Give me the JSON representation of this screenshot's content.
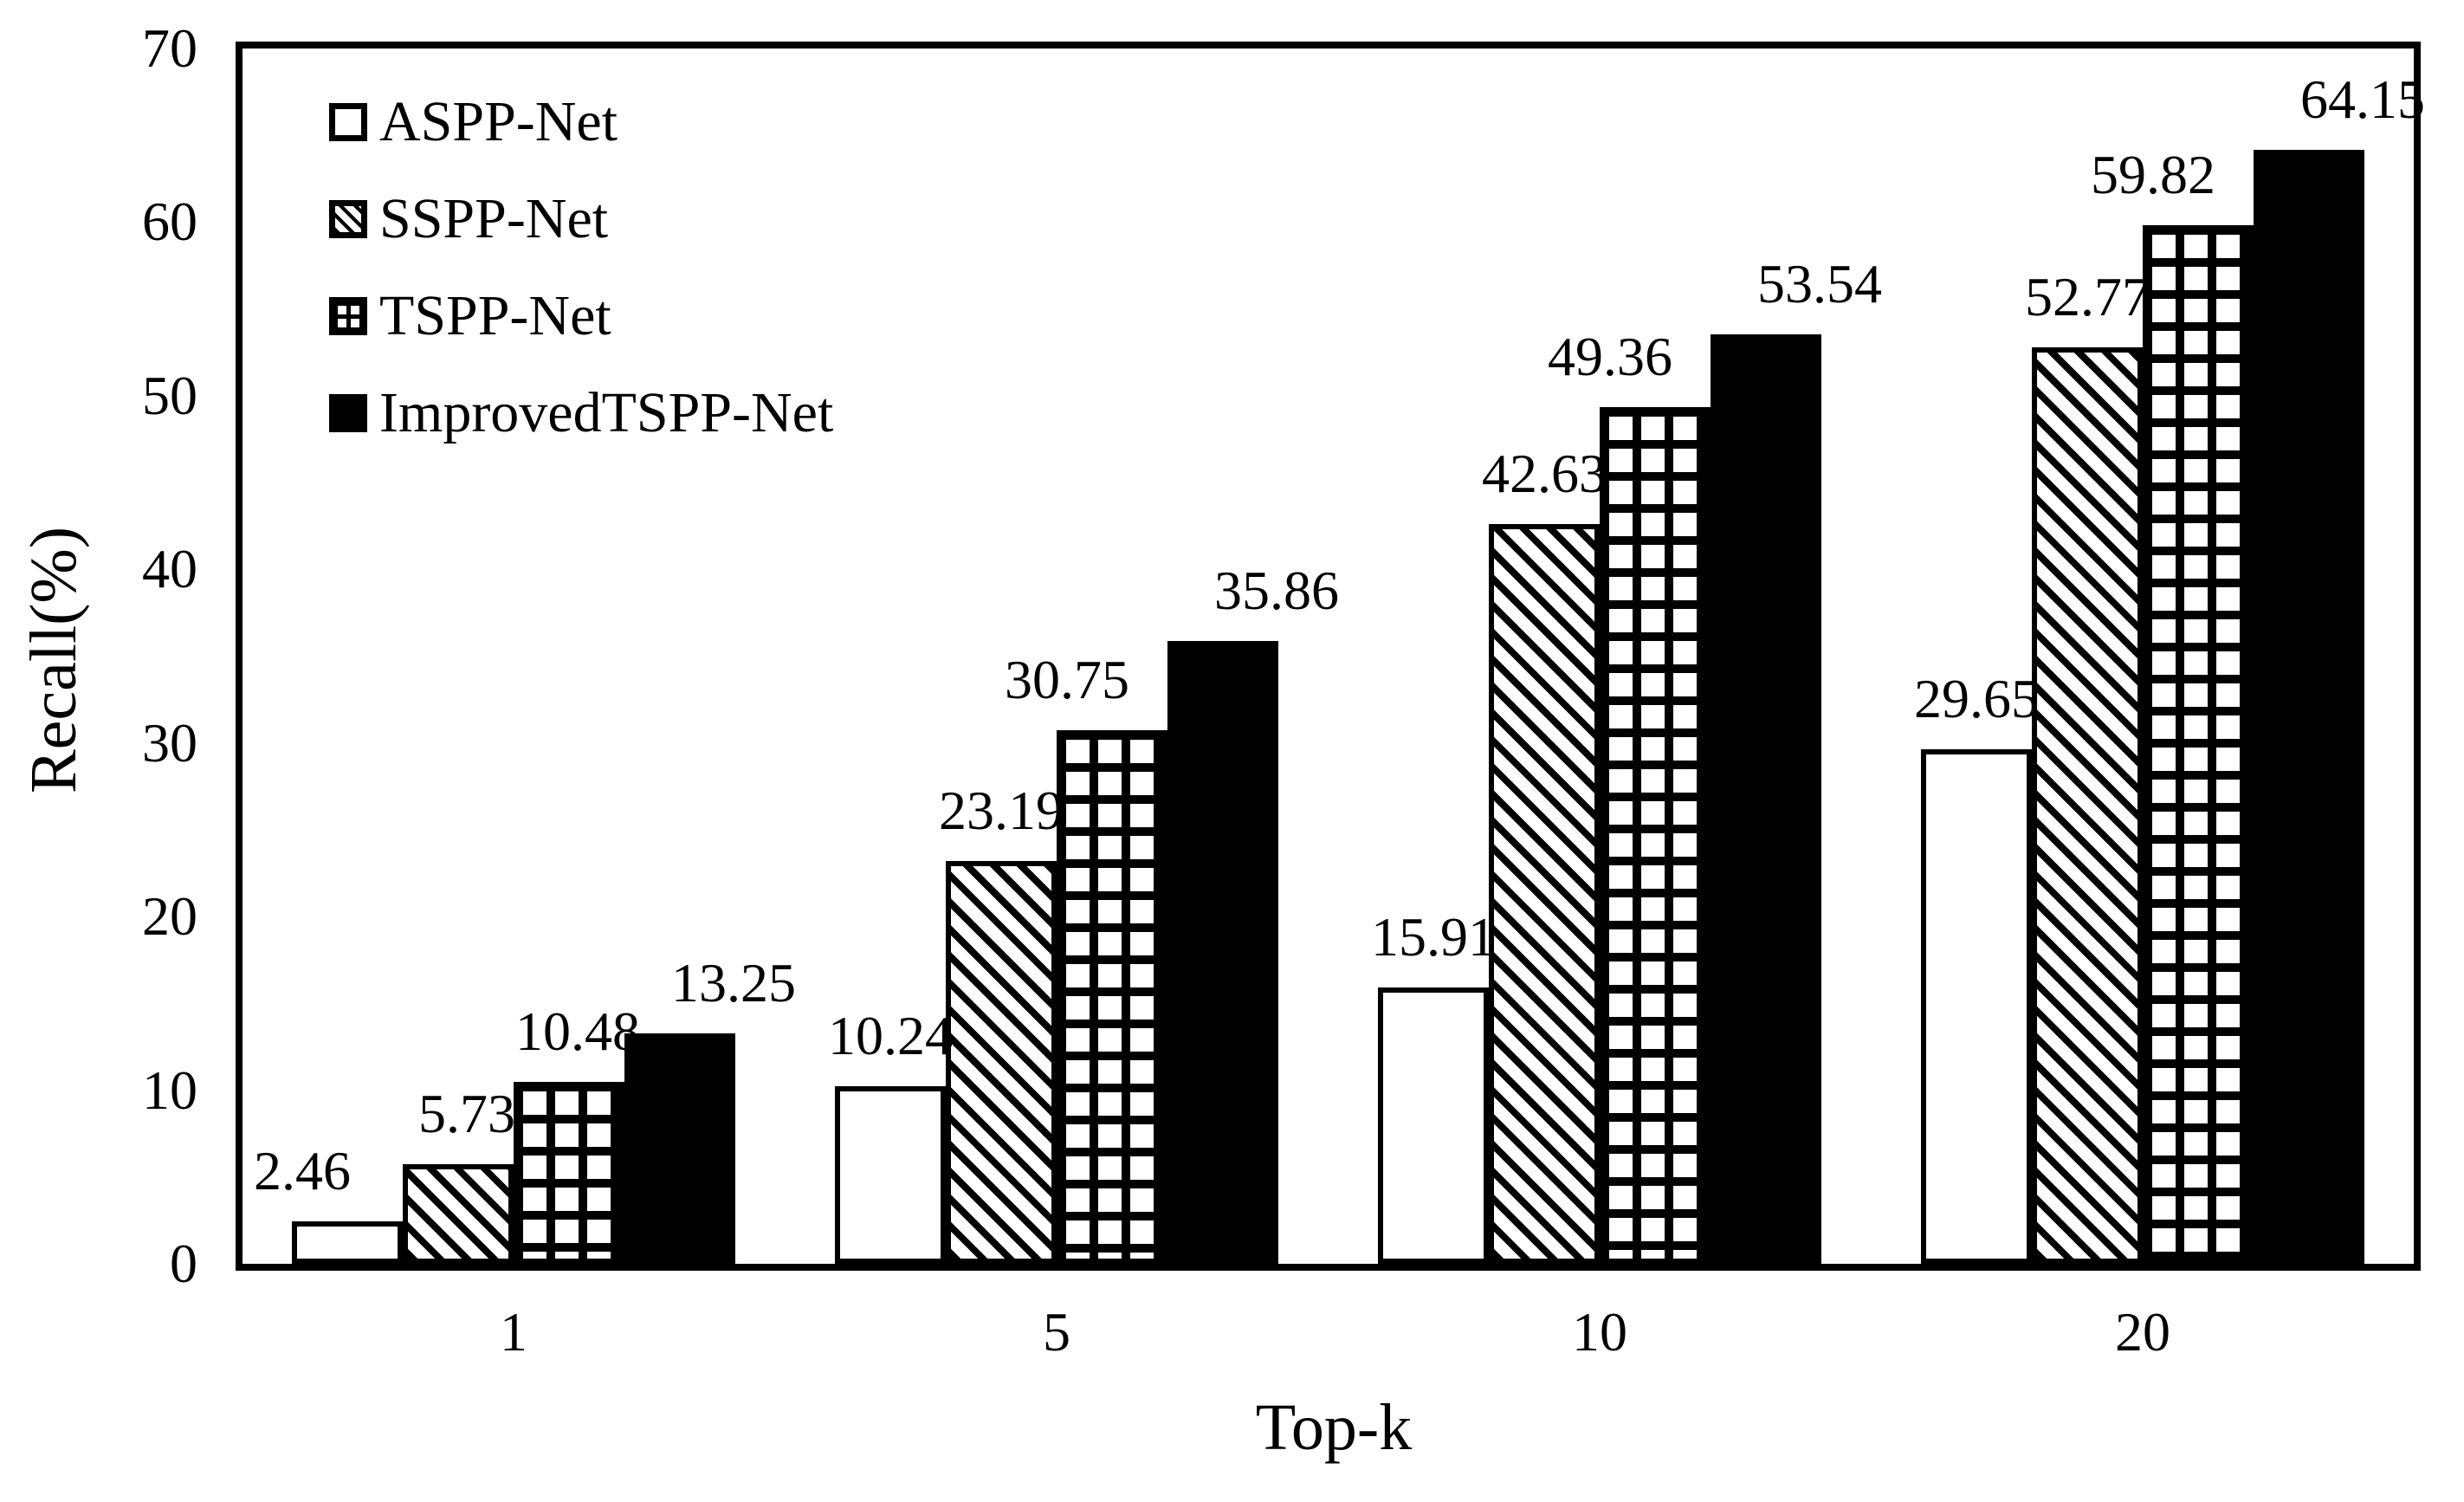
{
  "chart_data": {
    "type": "bar",
    "title": "",
    "xlabel": "Top-k",
    "ylabel": "Recall(%)",
    "categories": [
      "1",
      "5",
      "10",
      "20"
    ],
    "series": [
      {
        "name": "ASPP-Net",
        "pattern": "white",
        "values": [
          2.46,
          10.24,
          15.91,
          29.65
        ]
      },
      {
        "name": "SSPP-Net",
        "pattern": "diagonal",
        "values": [
          5.73,
          23.19,
          42.63,
          52.77
        ]
      },
      {
        "name": "TSPP-Net",
        "pattern": "grid",
        "values": [
          10.48,
          30.75,
          49.36,
          59.82
        ]
      },
      {
        "name": "ImprovedTSPP-Net",
        "pattern": "solid",
        "values": [
          13.25,
          35.86,
          53.54,
          64.15
        ]
      }
    ],
    "data_labels": [
      [
        "2.46",
        "10.24",
        "15.91",
        "29.65"
      ],
      [
        "5.73",
        "23.19",
        "42.63",
        "52.77"
      ],
      [
        "10.48",
        "30.75",
        "49.36",
        "59.82"
      ],
      [
        "13.25",
        "35.86",
        "53.54",
        "64.15"
      ]
    ],
    "ylim": [
      0,
      70
    ],
    "yticks": [
      "0",
      "10",
      "20",
      "30",
      "40",
      "50",
      "60",
      "70"
    ],
    "legend_position": "top-left",
    "grid": false
  },
  "colors": {
    "foreground": "#000000",
    "background": "#ffffff",
    "bar_fill": "#ffffff",
    "bar_stroke": "#000000"
  }
}
